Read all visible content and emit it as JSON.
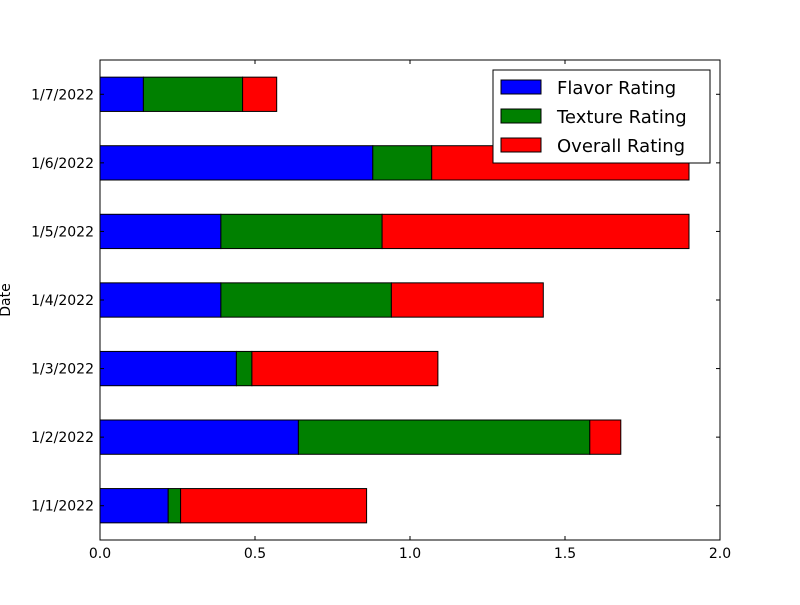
{
  "chart_data": {
    "type": "bar",
    "orientation": "horizontal",
    "stacked": true,
    "categories": [
      "1/1/2022",
      "1/2/2022",
      "1/3/2022",
      "1/4/2022",
      "1/5/2022",
      "1/6/2022",
      "1/7/2022"
    ],
    "series": [
      {
        "name": "Flavor Rating",
        "color": "#0000ff",
        "values": [
          0.22,
          0.64,
          0.44,
          0.39,
          0.39,
          0.88,
          0.14
        ]
      },
      {
        "name": "Texture Rating",
        "color": "#008000",
        "values": [
          0.04,
          0.94,
          0.05,
          0.55,
          0.52,
          0.19,
          0.32
        ]
      },
      {
        "name": "Overall Rating",
        "color": "#ff0000",
        "values": [
          0.6,
          0.1,
          0.6,
          0.49,
          0.99,
          0.83,
          0.11
        ]
      }
    ],
    "xlim": [
      0.0,
      2.0
    ],
    "xticks": [
      "0.0",
      "0.5",
      "1.0",
      "1.5",
      "2.0"
    ],
    "ylabel": "Date",
    "title": "",
    "xlabel": "",
    "legend_position": "top-right",
    "grid": false
  }
}
